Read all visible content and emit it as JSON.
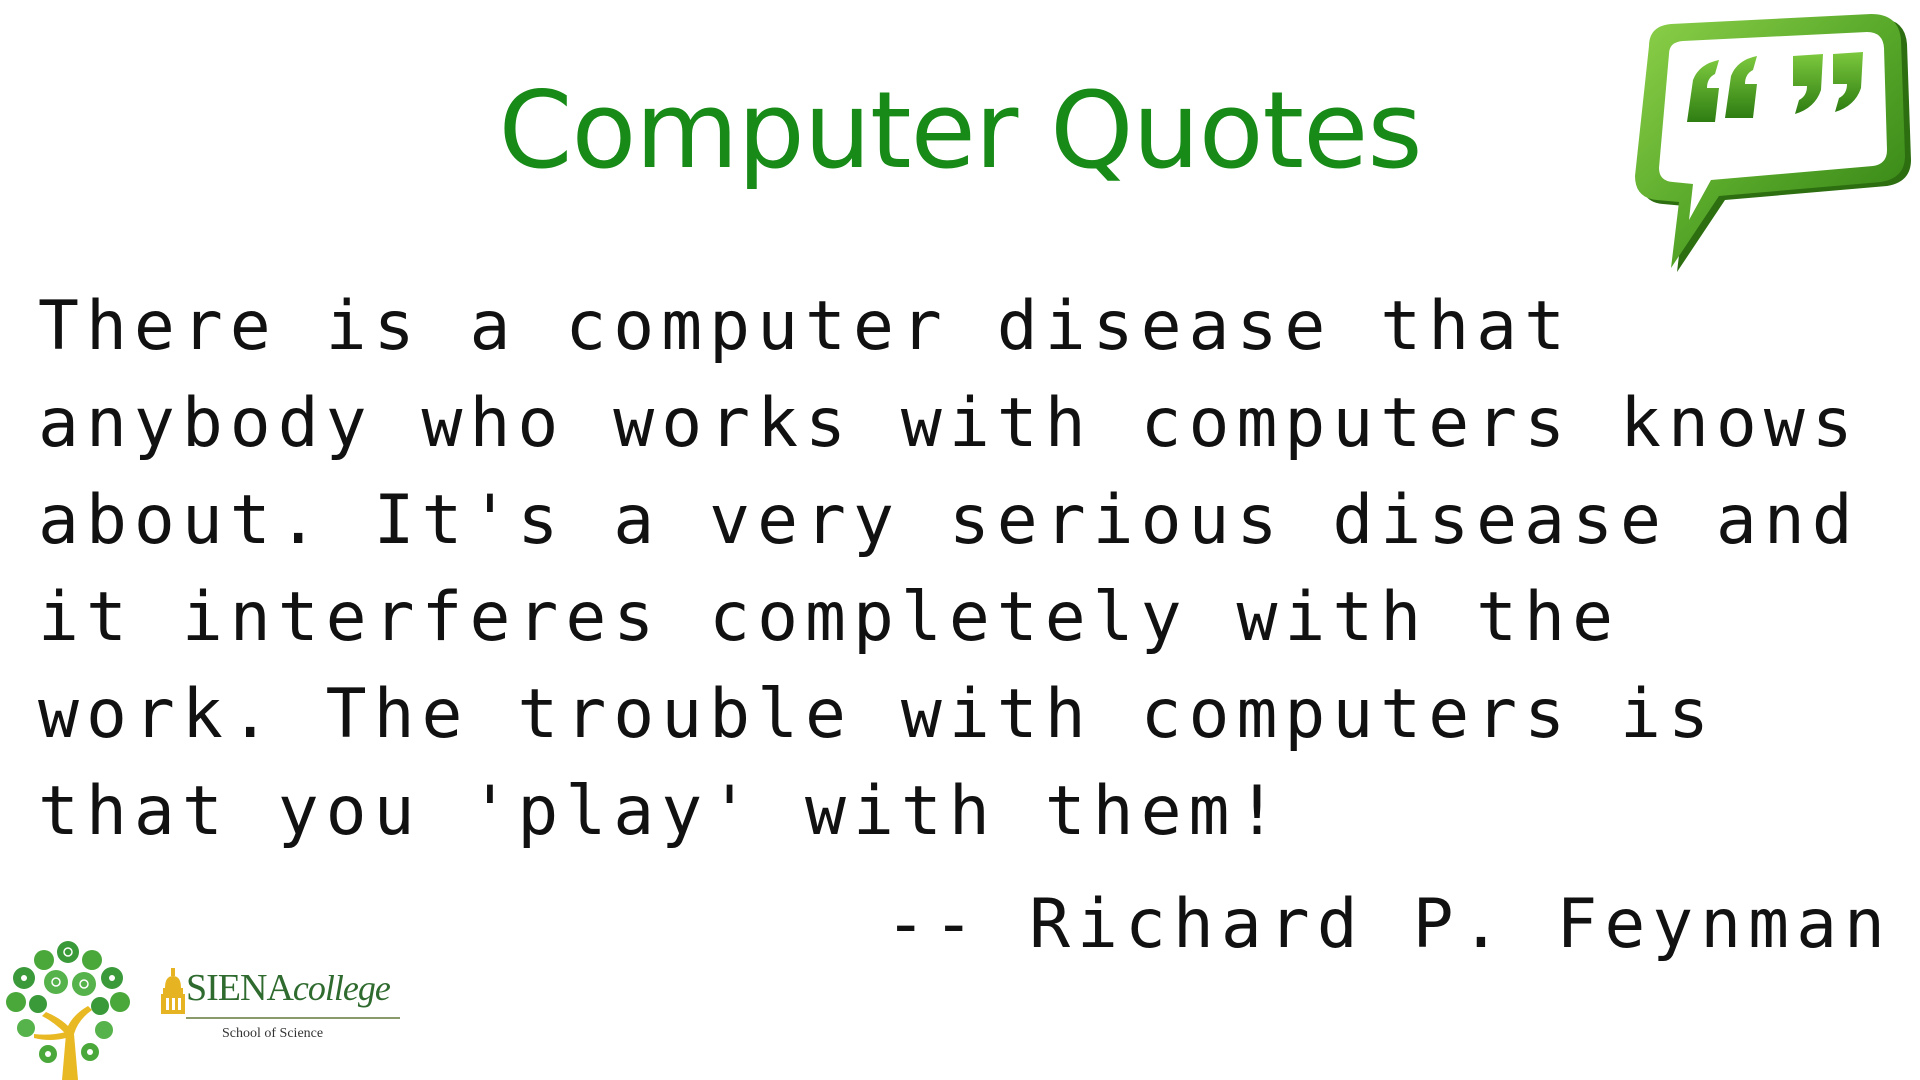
{
  "slide": {
    "title": "Computer Quotes",
    "quote_lines": [
      "There is a computer disease that",
      "anybody who works with computers knows",
      "about. It's a very serious disease and",
      "it interferes completely with the",
      "work. The trouble with computers is",
      "that you 'play' with them!"
    ],
    "attribution": "-- Richard P. Feynman"
  },
  "logos": {
    "college_name": "SIENA",
    "college_word": "college",
    "school": "School of Science"
  },
  "icons": {
    "quote_bubble": "speech-bubble-quotes-icon",
    "tree": "science-tree-icon",
    "dome": "dome-icon"
  },
  "colors": {
    "title": "#178a17",
    "bubble_green": "#5fb32a",
    "bubble_dark": "#2e7d12",
    "text": "#111111",
    "siena_green": "#2f6b2f",
    "siena_gold": "#e6b422"
  }
}
